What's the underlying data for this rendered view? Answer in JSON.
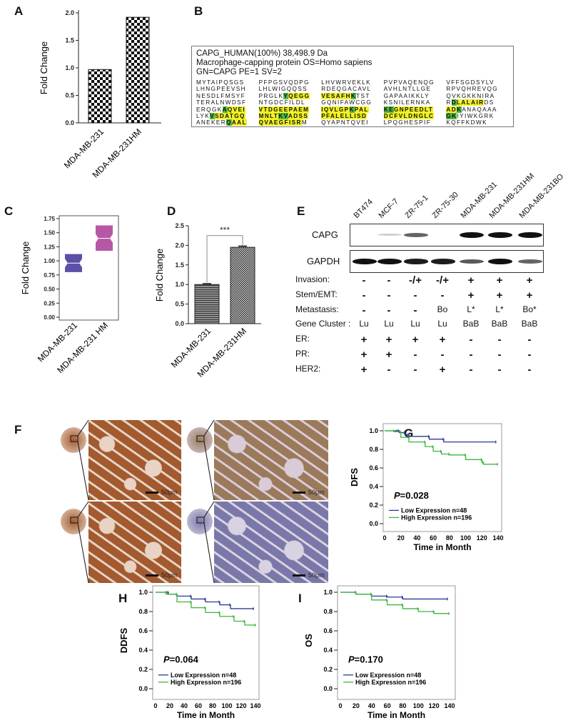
{
  "panel_labels": {
    "A": "A",
    "B": "B",
    "C": "C",
    "D": "D",
    "E": "E",
    "F": "F",
    "G": "G",
    "H": "H",
    "I": "I"
  },
  "chart_data": [
    {
      "id": "A",
      "type": "bar",
      "categories": [
        "MDA-MB-231",
        "MDA-MB-231HM"
      ],
      "values": [
        0.97,
        1.92
      ],
      "ylabel": "Fold Change",
      "ylim": [
        0,
        2.0
      ],
      "yticks": [
        0.0,
        0.5,
        1.0,
        1.5,
        2.0
      ],
      "pattern": "checkerboard"
    },
    {
      "id": "C",
      "type": "box",
      "categories": [
        "MDA-MB-231",
        "MDA-MB-231 HM"
      ],
      "boxes": [
        {
          "low": 0.8,
          "median": 0.96,
          "high": 1.12,
          "color": "#5b4fa8"
        },
        {
          "low": 1.18,
          "median": 1.4,
          "high": 1.63,
          "color": "#b658a6"
        }
      ],
      "ylabel": "Fold Change",
      "ylim": [
        0,
        1.75
      ],
      "yticks": [
        0.0,
        0.25,
        0.5,
        0.75,
        1.0,
        1.25,
        1.5,
        1.75
      ]
    },
    {
      "id": "D",
      "type": "bar",
      "categories": [
        "MDA-MB-231",
        "MDA-MB-231HM"
      ],
      "values": [
        1.0,
        1.95
      ],
      "errors": [
        0.02,
        0.03
      ],
      "ylabel": "Fold Change",
      "ylim": [
        0,
        2.5
      ],
      "yticks": [
        0.0,
        0.5,
        1.0,
        1.5,
        2.0,
        2.5
      ],
      "significance": "***"
    },
    {
      "id": "G",
      "type": "line",
      "subtype": "kaplan-meier",
      "ylabel": "DFS",
      "xlabel": "Time in Month",
      "xlim": [
        0,
        140
      ],
      "ylim": [
        0,
        1.0
      ],
      "xticks": [
        0,
        20,
        40,
        60,
        80,
        100,
        120,
        140
      ],
      "yticks": [
        0.0,
        0.2,
        0.4,
        0.6,
        0.8,
        1.0
      ],
      "pvalue_label": "P",
      "pvalue": "=0.028",
      "legend": "bottom-left",
      "series": [
        {
          "name": "Low  Expression n=48",
          "color": "#2b3a9a",
          "x": [
            0,
            16,
            18,
            25,
            30,
            55,
            73,
            138
          ],
          "y": [
            1,
            1,
            0.98,
            0.96,
            0.94,
            0.91,
            0.88,
            0.88
          ]
        },
        {
          "name": "High Expression n=196",
          "color": "#3cb63c",
          "x": [
            0,
            12,
            20,
            30,
            50,
            60,
            70,
            80,
            100,
            120,
            122,
            140
          ],
          "y": [
            1,
            0.99,
            0.93,
            0.88,
            0.83,
            0.78,
            0.75,
            0.74,
            0.69,
            0.66,
            0.64,
            0.64
          ]
        }
      ]
    },
    {
      "id": "H",
      "type": "line",
      "subtype": "kaplan-meier",
      "ylabel": "DDFS",
      "xlabel": "Time in Month",
      "xlim": [
        0,
        140
      ],
      "ylim": [
        0,
        1.0
      ],
      "xticks": [
        0,
        20,
        40,
        60,
        80,
        100,
        120,
        140
      ],
      "yticks": [
        0.0,
        0.2,
        0.4,
        0.6,
        0.8,
        1.0
      ],
      "pvalue_label": "P",
      "pvalue": "=0.064",
      "legend": "bottom-left",
      "series": [
        {
          "name": "Low  Expression n=48",
          "color": "#2b3a9a",
          "x": [
            0,
            15,
            18,
            30,
            50,
            70,
            90,
            105,
            138
          ],
          "y": [
            1,
            1,
            0.98,
            0.96,
            0.93,
            0.9,
            0.87,
            0.83,
            0.83
          ]
        },
        {
          "name": "High Expression n=196",
          "color": "#3cb63c",
          "x": [
            0,
            15,
            30,
            50,
            70,
            90,
            110,
            125,
            140
          ],
          "y": [
            1,
            0.98,
            0.9,
            0.84,
            0.79,
            0.75,
            0.7,
            0.66,
            0.65
          ]
        }
      ]
    },
    {
      "id": "I",
      "type": "line",
      "subtype": "kaplan-meier",
      "ylabel": "OS",
      "xlabel": "Time in Month",
      "xlim": [
        0,
        140
      ],
      "ylim": [
        0,
        1.0
      ],
      "xticks": [
        0,
        20,
        40,
        60,
        80,
        100,
        120,
        140
      ],
      "yticks": [
        0.0,
        0.2,
        0.4,
        0.6,
        0.8,
        1.0
      ],
      "pvalue_label": "P",
      "pvalue": "=0.170",
      "legend": "bottom-left",
      "series": [
        {
          "name": "Low  Expression n=48",
          "color": "#2b3a9a",
          "x": [
            0,
            20,
            40,
            60,
            80,
            138
          ],
          "y": [
            1,
            0.98,
            0.96,
            0.95,
            0.93,
            0.93
          ]
        },
        {
          "name": "High Expression n=196",
          "color": "#3cb63c",
          "x": [
            0,
            20,
            40,
            60,
            80,
            100,
            120,
            140
          ],
          "y": [
            1,
            0.98,
            0.92,
            0.87,
            0.83,
            0.8,
            0.78,
            0.78
          ]
        }
      ]
    }
  ],
  "panel_B": {
    "header": [
      "CAPG_HUMAN(100%) 38,498.9 Da",
      "Macrophage-capping protein OS=Homo sapiens",
      "GN=CAPG PE=1 SV=2"
    ],
    "highlight_colors": {
      "y": "#f2f224",
      "g": "#52b848"
    },
    "rows": [
      [
        [
          [
            "MYTAIPQSGS",
            ""
          ]
        ],
        [
          [
            "PFPGSVQDPG",
            ""
          ]
        ],
        [
          [
            "LHVWRVEKLK",
            ""
          ]
        ],
        [
          [
            "PVPVAQENQG",
            ""
          ]
        ],
        [
          [
            "VFFSGDSYLV",
            ""
          ]
        ]
      ],
      [
        [
          [
            "LHNGPEEVSH",
            ""
          ]
        ],
        [
          [
            "LHLWIGQQSS",
            ""
          ]
        ],
        [
          [
            "RDEQGACAVL",
            ""
          ]
        ],
        [
          [
            "AVHLNTLLGE",
            ""
          ]
        ],
        [
          [
            "RPVQHREVQG",
            ""
          ]
        ]
      ],
      [
        [
          [
            "NESDLFMSYF",
            ""
          ]
        ],
        [
          [
            "PRGLK",
            ""
          ],
          [
            "Y",
            "g"
          ],
          [
            "QEGG",
            "y"
          ]
        ],
        [
          [
            "VESAFH",
            "y"
          ],
          [
            "K",
            "g"
          ],
          [
            "TST",
            ""
          ]
        ],
        [
          [
            "GAPAAIKKLY",
            ""
          ]
        ],
        [
          [
            "QVKGKKNIRA",
            ""
          ]
        ]
      ],
      [
        [
          [
            "TERALNWDSF",
            ""
          ]
        ],
        [
          [
            "NTGDCFILDL",
            ""
          ]
        ],
        [
          [
            "GQNIFAWCGG",
            ""
          ]
        ],
        [
          [
            "KSNILERNKA",
            ""
          ]
        ],
        [
          [
            "R",
            ""
          ],
          [
            "D",
            "g"
          ],
          [
            "LALAIR",
            "y"
          ],
          [
            "DS",
            ""
          ]
        ]
      ],
      [
        [
          [
            "ERQGK",
            ""
          ],
          [
            "A",
            "g"
          ],
          [
            "QVEI",
            "y"
          ]
        ],
        [
          [
            "VTDGEEPAEM",
            "y"
          ]
        ],
        [
          [
            "IQVLGP",
            "y"
          ],
          [
            "K",
            "g"
          ],
          [
            "PAL",
            "y"
          ]
        ],
        [
          [
            "KE",
            "g"
          ],
          [
            "GNPEEDLT",
            "y"
          ]
        ],
        [
          [
            "AD",
            "y"
          ],
          [
            "K",
            "g"
          ],
          [
            "ANAQAAA",
            ""
          ]
        ]
      ],
      [
        [
          [
            "LYK",
            ""
          ],
          [
            "V",
            "g"
          ],
          [
            "SDATGQ",
            "y"
          ]
        ],
        [
          [
            "MNLT",
            "y"
          ],
          [
            "KV",
            "g"
          ],
          [
            "ADSS",
            "y"
          ]
        ],
        [
          [
            "PFALELLISD",
            "y"
          ]
        ],
        [
          [
            "DCFVLDNGLC",
            "y"
          ]
        ],
        [
          [
            "GK",
            "g"
          ],
          [
            "IYIWKGRK",
            ""
          ]
        ]
      ],
      [
        [
          [
            "ANEKER",
            ""
          ],
          [
            "Q",
            "g"
          ],
          [
            "AAL",
            "y"
          ]
        ],
        [
          [
            "QVAEGFISR",
            "y"
          ],
          [
            "M",
            ""
          ]
        ],
        [
          [
            "QYAPNTQVEI",
            ""
          ]
        ],
        [
          [
            "LPQGHESPIF",
            ""
          ]
        ],
        [
          [
            "KQFFKDWK",
            ""
          ]
        ]
      ]
    ]
  },
  "panel_E": {
    "cell_lines": [
      "BT474",
      "MCF-7",
      "ZR-75-1",
      "ZR-75-30",
      "MDA-MB-231",
      "MDA-MB-231HM",
      "MDA-MB-231BO"
    ],
    "blots": [
      {
        "label": "CAPG",
        "intensity": [
          0,
          0.1,
          0.55,
          0,
          1,
          0.95,
          1
        ]
      },
      {
        "label": "GAPDH",
        "intensity": [
          0.9,
          0.95,
          0.85,
          0.85,
          0.6,
          0.95,
          0.55
        ]
      }
    ],
    "rows": [
      {
        "label": "Invasion:",
        "values": [
          "-",
          "-",
          "-/+",
          "-/+",
          "+",
          "+",
          "+"
        ]
      },
      {
        "label": "Stem/EMT:",
        "values": [
          "-",
          "-",
          "-",
          "-",
          "+",
          "+",
          "+"
        ]
      },
      {
        "label": "Metastasis:",
        "values": [
          "-",
          "-",
          "-",
          "Bo",
          "L*",
          "L*",
          "Bo*"
        ]
      },
      {
        "label": "Gene Cluster :",
        "values": [
          "Lu",
          "Lu",
          "Lu",
          "Lu",
          "BaB",
          "BaB",
          "BaB"
        ]
      },
      {
        "label": "ER:",
        "values": [
          "+",
          "+",
          "+",
          "+",
          "-",
          "-",
          "-"
        ]
      },
      {
        "label": "PR:",
        "values": [
          "+",
          "+",
          "-",
          "-",
          "-",
          "-",
          "-"
        ]
      },
      {
        "label": "HER2:",
        "values": [
          "+",
          "-",
          "-",
          "+",
          "-",
          "-",
          "-"
        ]
      }
    ]
  },
  "panel_F": {
    "scale_label": "50μm",
    "images": [
      {
        "stain": "strong"
      },
      {
        "stain": "moderate"
      },
      {
        "stain": "strong"
      },
      {
        "stain": "weak"
      }
    ]
  }
}
